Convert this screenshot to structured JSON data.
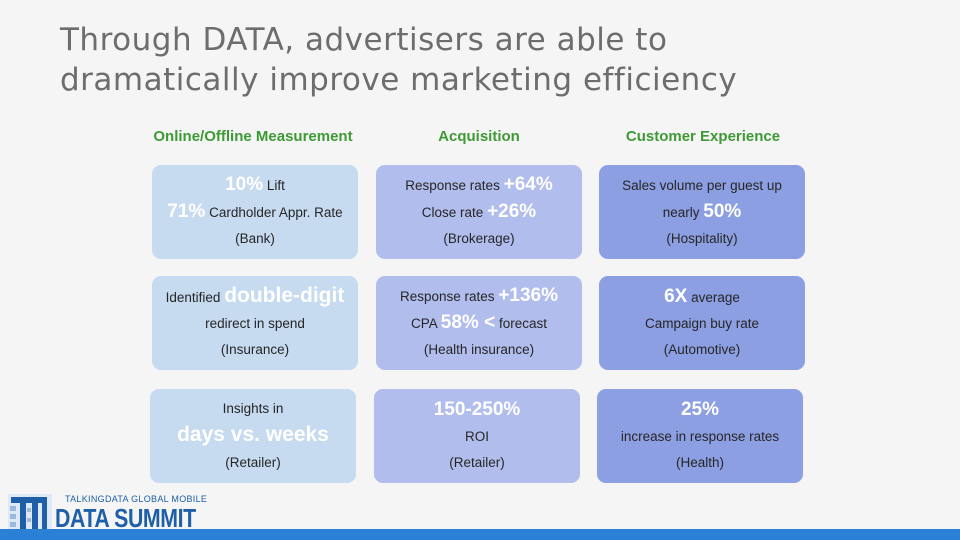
{
  "title": {
    "line1": "Through DATA, advertisers are able to",
    "line2": "dramatically improve marketing efficiency"
  },
  "columns": {
    "col1": "Online/Offline Measurement",
    "col2": "Acquisition",
    "col3": "Customer Experience"
  },
  "boxes": {
    "b11": {
      "l1_hl": "10%",
      "l1_text": "Lift",
      "l2_hl": "71%",
      "l2_text": "Cardholder Appr. Rate",
      "l3": "(Bank)"
    },
    "b21": {
      "l1_text": "Identified",
      "l1_hl": "double-digit",
      "l2": "redirect in spend",
      "l3": "(Insurance)"
    },
    "b31": {
      "l1": "Insights in",
      "l2_hl": "days vs. weeks",
      "l3": "(Retailer)"
    },
    "b12": {
      "l1_text": "Response rates",
      "l1_hl": "+64%",
      "l2_text": "Close rate",
      "l2_hl": "+26%",
      "l3": "(Brokerage)"
    },
    "b22": {
      "l1_text": "Response rates",
      "l1_hl": "+136%",
      "l2_pre": "CPA",
      "l2_hl": "58% <",
      "l2_text": "forecast",
      "l3": "(Health insurance)"
    },
    "b32": {
      "l1_hl": "150-250%",
      "l2": "ROI",
      "l3": "(Retailer)"
    },
    "b13": {
      "l1": "Sales volume per guest up",
      "l2_text": "nearly",
      "l2_hl": "50%",
      "l3": "(Hospitality)"
    },
    "b23": {
      "l1_hl": "6X",
      "l1_text": "average",
      "l2": "Campaign buy rate",
      "l3": "(Automotive)"
    },
    "b33": {
      "l1_hl": "25%",
      "l2": "increase in response rates",
      "l3": "(Health)"
    }
  },
  "logo": {
    "small": "TALKINGDATA GLOBAL MOBILE",
    "big": "DATA SUMMIT",
    "mark": "T"
  },
  "colors": {
    "title": "#6d6d6d",
    "column_heading": "#3d9a35",
    "box_col1": "#c6daf0",
    "box_col2": "#b1bdec",
    "box_col3": "#8d9fe3",
    "footer_bar": "#2a80d4",
    "logo": "#1e5fa8"
  }
}
